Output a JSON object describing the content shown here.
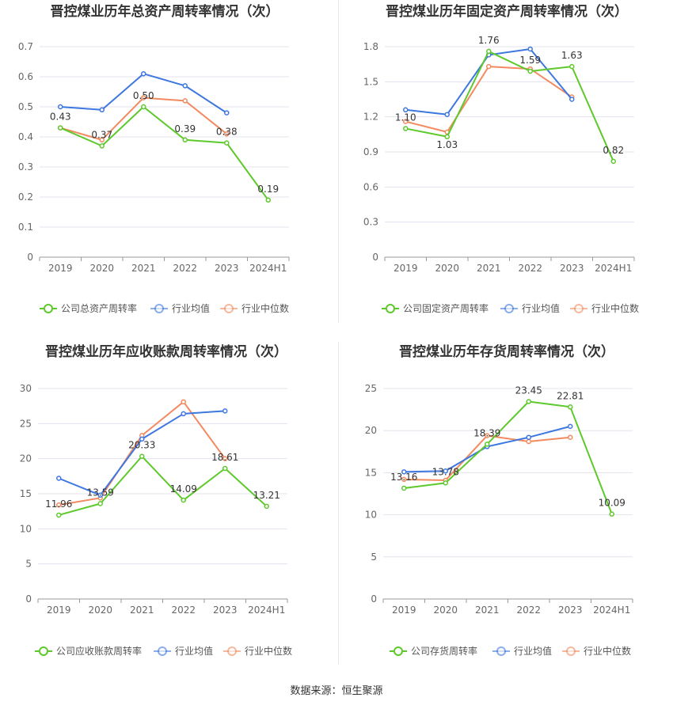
{
  "colors": {
    "company": "#5dc92b",
    "avg": "#3d77e0",
    "median": "#f28a5f",
    "grid": "#e3e3ee",
    "axis": "#666666",
    "title": "#333333"
  },
  "source": "数据来源：恒生聚源",
  "chart_data": [
    {
      "type": "line",
      "title": "晋控煤业历年总资产周转率情况（次）",
      "categories": [
        "2019",
        "2020",
        "2021",
        "2022",
        "2023",
        "2024H1"
      ],
      "yticks": [
        "0",
        "0.1",
        "0.2",
        "0.3",
        "0.4",
        "0.5",
        "0.6",
        "0.7"
      ],
      "ylim": [
        0,
        0.7
      ],
      "series": [
        {
          "name": "公司总资产周转率",
          "values": [
            0.43,
            0.37,
            0.5,
            0.39,
            0.38,
            0.19
          ],
          "labels": [
            "0.43",
            "0.37",
            "0.50",
            "0.39",
            "0.38",
            "0.19"
          ]
        },
        {
          "name": "行业均值",
          "values": [
            0.5,
            0.49,
            0.61,
            0.57,
            0.48,
            null
          ]
        },
        {
          "name": "行业中位数",
          "values": [
            0.43,
            0.39,
            0.53,
            0.52,
            0.41,
            null
          ]
        }
      ],
      "legend_position": "bottom"
    },
    {
      "type": "line",
      "title": "晋控煤业历年固定资产周转率情况（次）",
      "categories": [
        "2019",
        "2020",
        "2021",
        "2022",
        "2023",
        "2024H1"
      ],
      "yticks": [
        "0",
        "0.3",
        "0.6",
        "0.9",
        "1.2",
        "1.5",
        "1.8"
      ],
      "ylim": [
        0,
        1.8
      ],
      "series": [
        {
          "name": "公司固定资产周转率",
          "values": [
            1.1,
            1.03,
            1.76,
            1.59,
            1.63,
            0.82
          ],
          "labels": [
            "1.10",
            "1.03",
            "1.76",
            "1.59",
            "1.63",
            "0.82"
          ]
        },
        {
          "name": "行业均值",
          "values": [
            1.26,
            1.22,
            1.73,
            1.78,
            1.35,
            null
          ]
        },
        {
          "name": "行业中位数",
          "values": [
            1.16,
            1.07,
            1.63,
            1.61,
            1.37,
            null
          ]
        }
      ],
      "legend_position": "bottom"
    },
    {
      "type": "line",
      "title": "晋控煤业历年应收账款周转率情况（次）",
      "categories": [
        "2019",
        "2020",
        "2021",
        "2022",
        "2023",
        "2024H1"
      ],
      "yticks": [
        "0",
        "5",
        "10",
        "15",
        "20",
        "25",
        "30"
      ],
      "ylim": [
        0,
        30
      ],
      "series": [
        {
          "name": "公司应收账款周转率",
          "values": [
            11.96,
            13.59,
            20.33,
            14.09,
            18.61,
            13.21
          ],
          "labels": [
            "11.96",
            "13.59",
            "20.33",
            "14.09",
            "18.61",
            "13.21"
          ]
        },
        {
          "name": "行业均值",
          "values": [
            17.2,
            14.8,
            22.8,
            26.4,
            26.8,
            null
          ]
        },
        {
          "name": "行业中位数",
          "values": [
            13.4,
            14.4,
            23.3,
            28.1,
            20.0,
            null
          ]
        }
      ],
      "legend_position": "bottom"
    },
    {
      "type": "line",
      "title": "晋控煤业历年存货周转率情况（次）",
      "categories": [
        "2019",
        "2020",
        "2021",
        "2022",
        "2023",
        "2024H1"
      ],
      "yticks": [
        "0",
        "5",
        "10",
        "15",
        "20",
        "25"
      ],
      "ylim": [
        0,
        25
      ],
      "series": [
        {
          "name": "公司存货周转率",
          "values": [
            13.16,
            13.78,
            18.39,
            23.45,
            22.81,
            10.09
          ],
          "labels": [
            "13.16",
            "13.78",
            "18.39",
            "23.45",
            "22.81",
            "10.09"
          ]
        },
        {
          "name": "行业均值",
          "values": [
            15.1,
            15.2,
            18.1,
            19.2,
            20.5,
            null
          ]
        },
        {
          "name": "行业中位数",
          "values": [
            14.2,
            14.1,
            19.4,
            18.7,
            19.2,
            null
          ]
        }
      ],
      "legend_position": "bottom"
    }
  ]
}
